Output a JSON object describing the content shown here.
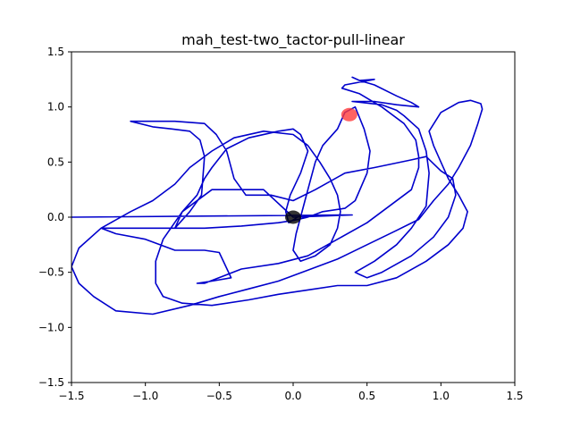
{
  "chart_data": {
    "type": "line",
    "title": "mah_test-two_tactor-pull-linear",
    "xlabel": "",
    "ylabel": "",
    "xlim": [
      -1.5,
      1.5
    ],
    "ylim": [
      -1.5,
      1.5
    ],
    "xticks": [
      -1.5,
      -1.0,
      -0.5,
      0.0,
      0.5,
      1.0,
      1.5
    ],
    "yticks": [
      -1.5,
      -1.0,
      -0.5,
      0.0,
      0.5,
      1.0,
      1.5
    ],
    "xtick_labels": [
      "−1.5",
      "−1.0",
      "−0.5",
      "0.0",
      "0.5",
      "1.0",
      "1.5"
    ],
    "ytick_labels": [
      "−1.5",
      "−1.0",
      "−0.5",
      "0.0",
      "0.5",
      "1.0",
      "1.5"
    ],
    "grid": false,
    "line_color": "#0000cc",
    "series": [
      {
        "points": [
          [
            -1.5,
            0.0
          ],
          [
            0.4,
            0.02
          ],
          [
            0.0,
            0.0
          ],
          [
            -0.2,
            0.25
          ],
          [
            -0.55,
            0.25
          ],
          [
            -0.75,
            0.05
          ],
          [
            -0.8,
            -0.1
          ],
          [
            -0.7,
            0.05
          ],
          [
            -0.62,
            0.2
          ],
          [
            -0.6,
            0.55
          ],
          [
            -0.63,
            0.7
          ],
          [
            -0.7,
            0.78
          ],
          [
            -0.82,
            0.8
          ],
          [
            -0.95,
            0.82
          ],
          [
            -1.1,
            0.87
          ],
          [
            -1.0,
            0.87
          ],
          [
            -0.8,
            0.87
          ],
          [
            -0.6,
            0.85
          ],
          [
            -0.52,
            0.75
          ],
          [
            -0.45,
            0.6
          ],
          [
            -0.4,
            0.35
          ],
          [
            -0.32,
            0.2
          ],
          [
            -0.15,
            0.2
          ],
          [
            0.0,
            0.15
          ],
          [
            0.15,
            0.25
          ],
          [
            0.35,
            0.4
          ],
          [
            0.55,
            0.45
          ],
          [
            0.8,
            0.52
          ],
          [
            0.9,
            0.55
          ],
          [
            1.0,
            0.42
          ],
          [
            1.08,
            0.35
          ],
          [
            1.1,
            0.2
          ],
          [
            1.05,
            0.0
          ],
          [
            0.95,
            -0.18
          ],
          [
            0.8,
            -0.35
          ],
          [
            0.6,
            -0.5
          ],
          [
            0.5,
            -0.55
          ],
          [
            0.45,
            -0.52
          ],
          [
            0.42,
            -0.5
          ],
          [
            0.55,
            -0.4
          ],
          [
            0.7,
            -0.25
          ],
          [
            0.8,
            -0.1
          ],
          [
            0.9,
            0.1
          ],
          [
            0.92,
            0.4
          ],
          [
            0.9,
            0.6
          ],
          [
            0.85,
            0.8
          ],
          [
            0.75,
            0.92
          ],
          [
            0.7,
            0.97
          ],
          [
            0.6,
            1.02
          ],
          [
            0.4,
            1.05
          ],
          [
            0.55,
            1.05
          ],
          [
            0.7,
            1.02
          ],
          [
            0.85,
            1.0
          ],
          [
            0.8,
            1.04
          ],
          [
            0.7,
            1.1
          ],
          [
            0.55,
            1.2
          ],
          [
            0.45,
            1.24
          ],
          [
            0.4,
            1.27
          ],
          [
            0.45,
            1.24
          ],
          [
            0.55,
            1.25
          ],
          [
            0.35,
            1.2
          ],
          [
            0.33,
            1.17
          ],
          [
            0.45,
            1.12
          ],
          [
            0.6,
            1.0
          ],
          [
            0.75,
            0.85
          ],
          [
            0.83,
            0.7
          ],
          [
            0.85,
            0.55
          ],
          [
            0.85,
            0.45
          ],
          [
            0.8,
            0.25
          ],
          [
            0.65,
            0.1
          ],
          [
            0.5,
            -0.05
          ],
          [
            0.3,
            -0.2
          ],
          [
            0.1,
            -0.35
          ],
          [
            -0.1,
            -0.42
          ],
          [
            -0.35,
            -0.47
          ],
          [
            -0.6,
            -0.6
          ],
          [
            -0.65,
            -0.6
          ],
          [
            -0.55,
            -0.58
          ],
          [
            -0.42,
            -0.55
          ],
          [
            -0.5,
            -0.32
          ],
          [
            -0.6,
            -0.3
          ],
          [
            -0.8,
            -0.3
          ],
          [
            -1.0,
            -0.2
          ],
          [
            -1.2,
            -0.15
          ],
          [
            -1.3,
            -0.1
          ],
          [
            -1.05,
            -0.1
          ],
          [
            -0.8,
            -0.1
          ],
          [
            -0.6,
            -0.1
          ],
          [
            -0.35,
            -0.08
          ],
          [
            -0.1,
            -0.05
          ],
          [
            0.0,
            -0.03
          ],
          [
            0.1,
            0.0
          ],
          [
            0.2,
            0.05
          ],
          [
            0.35,
            0.08
          ],
          [
            0.42,
            0.15
          ],
          [
            0.5,
            0.4
          ],
          [
            0.52,
            0.6
          ],
          [
            0.48,
            0.8
          ],
          [
            0.42,
            1.0
          ],
          [
            0.35,
            0.95
          ],
          [
            0.3,
            0.8
          ],
          [
            0.2,
            0.65
          ],
          [
            0.15,
            0.5
          ],
          [
            0.12,
            0.35
          ],
          [
            0.08,
            0.15
          ],
          [
            0.05,
            0.0
          ],
          [
            0.02,
            -0.15
          ],
          [
            0.0,
            -0.3
          ],
          [
            0.05,
            -0.4
          ],
          [
            0.15,
            -0.35
          ],
          [
            0.25,
            -0.25
          ],
          [
            0.3,
            -0.1
          ],
          [
            0.32,
            0.05
          ],
          [
            0.3,
            0.2
          ],
          [
            0.25,
            0.35
          ],
          [
            0.18,
            0.5
          ],
          [
            0.1,
            0.65
          ],
          [
            0.0,
            0.75
          ],
          [
            -0.2,
            0.78
          ],
          [
            -0.4,
            0.72
          ],
          [
            -0.55,
            0.6
          ],
          [
            -0.7,
            0.45
          ],
          [
            -0.8,
            0.3
          ],
          [
            -0.95,
            0.15
          ],
          [
            -1.1,
            0.05
          ],
          [
            -1.3,
            -0.1
          ],
          [
            -1.45,
            -0.28
          ],
          [
            -1.5,
            -0.45
          ],
          [
            -1.45,
            -0.6
          ],
          [
            -1.35,
            -0.72
          ],
          [
            -1.2,
            -0.85
          ],
          [
            -0.95,
            -0.88
          ],
          [
            -0.7,
            -0.8
          ],
          [
            -0.5,
            -0.72
          ],
          [
            -0.3,
            -0.65
          ],
          [
            -0.1,
            -0.58
          ],
          [
            0.1,
            -0.48
          ],
          [
            0.3,
            -0.38
          ],
          [
            0.5,
            -0.25
          ],
          [
            0.7,
            -0.12
          ],
          [
            0.85,
            -0.02
          ],
          [
            0.95,
            0.15
          ],
          [
            1.05,
            0.3
          ],
          [
            1.12,
            0.45
          ],
          [
            1.2,
            0.65
          ],
          [
            1.25,
            0.85
          ],
          [
            1.28,
            0.98
          ],
          [
            1.27,
            1.03
          ],
          [
            1.2,
            1.06
          ],
          [
            1.12,
            1.04
          ],
          [
            1.0,
            0.95
          ],
          [
            0.92,
            0.78
          ],
          [
            0.95,
            0.65
          ],
          [
            1.0,
            0.5
          ],
          [
            1.05,
            0.35
          ],
          [
            1.12,
            0.2
          ],
          [
            1.18,
            0.05
          ],
          [
            1.15,
            -0.1
          ],
          [
            1.05,
            -0.25
          ],
          [
            0.9,
            -0.4
          ],
          [
            0.7,
            -0.55
          ],
          [
            0.5,
            -0.62
          ],
          [
            0.3,
            -0.62
          ],
          [
            0.1,
            -0.66
          ],
          [
            -0.1,
            -0.7
          ],
          [
            -0.3,
            -0.75
          ],
          [
            -0.55,
            -0.8
          ],
          [
            -0.75,
            -0.78
          ],
          [
            -0.88,
            -0.72
          ],
          [
            -0.93,
            -0.6
          ],
          [
            -0.93,
            -0.4
          ],
          [
            -0.88,
            -0.2
          ],
          [
            -0.75,
            0.05
          ],
          [
            -0.65,
            0.2
          ],
          [
            -0.6,
            0.35
          ],
          [
            -0.55,
            0.45
          ],
          [
            -0.45,
            0.62
          ],
          [
            -0.3,
            0.72
          ],
          [
            -0.1,
            0.78
          ],
          [
            0.0,
            0.8
          ],
          [
            0.05,
            0.75
          ],
          [
            0.1,
            0.6
          ],
          [
            0.05,
            0.4
          ],
          [
            -0.02,
            0.2
          ],
          [
            -0.05,
            0.05
          ],
          [
            -0.03,
            -0.05
          ],
          [
            0.03,
            0.0
          ]
        ]
      }
    ],
    "markers": [
      {
        "x": 0.0,
        "y": 0.0,
        "color": "#000000"
      },
      {
        "x": 0.38,
        "y": 0.93,
        "color": "#ff3b3b"
      }
    ]
  }
}
